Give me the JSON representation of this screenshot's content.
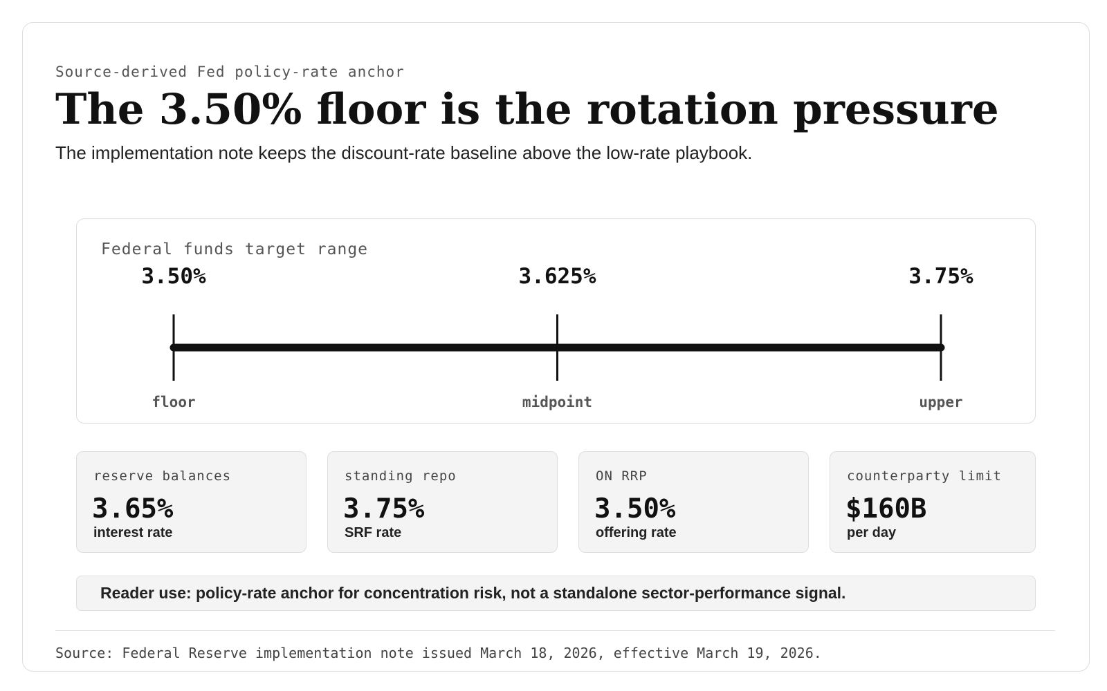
{
  "header": {
    "kicker": "Source-derived Fed policy-rate anchor",
    "headline": "The 3.50% floor is the rotation pressure",
    "subtitle": "The implementation note keeps the discount-rate baseline above the low-rate playbook."
  },
  "chart_data": {
    "type": "range",
    "title": "Federal funds target range",
    "xlim": [
      3.5,
      3.75
    ],
    "unit": "%",
    "points": [
      {
        "value": 3.5,
        "value_label": "3.50%",
        "role": "floor"
      },
      {
        "value": 3.625,
        "value_label": "3.625%",
        "role": "midpoint"
      },
      {
        "value": 3.75,
        "value_label": "3.75%",
        "role": "upper"
      }
    ],
    "line_color": "#111111"
  },
  "stats": [
    {
      "label": "reserve balances",
      "value": "3.65%",
      "caption": "interest rate"
    },
    {
      "label": "standing repo",
      "value": "3.75%",
      "caption": "SRF rate"
    },
    {
      "label": "ON RRP",
      "value": "3.50%",
      "caption": "offering rate"
    },
    {
      "label": "counterparty limit",
      "value": "$160B",
      "caption": "per day"
    }
  ],
  "reader_note": "Reader use: policy-rate anchor for concentration risk, not a standalone sector-performance signal.",
  "source": "Source: Federal Reserve implementation note issued March 18, 2026, effective March 19, 2026."
}
